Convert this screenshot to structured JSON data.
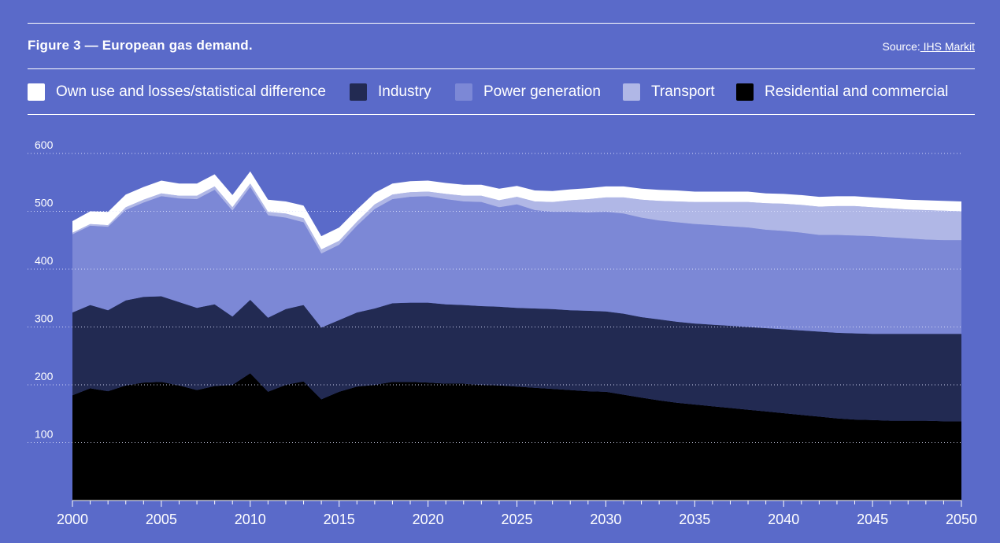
{
  "header": {
    "figure_title": "Figure 3 — European gas demand.",
    "source_label": "Source:",
    "source_link": " IHS Markit"
  },
  "colors": {
    "background": "#5a6ac9",
    "own_use": "#ffffff",
    "industry": "#222a52",
    "power": "#7c88d6",
    "transport": "#b0b7e6",
    "residential": "#000000"
  },
  "chart_data": {
    "type": "area",
    "stacked": true,
    "title": "",
    "xlabel": "",
    "ylabel": "",
    "ylim": [
      0,
      600
    ],
    "y_ticks": [
      "100",
      "200",
      "300",
      "400",
      "500",
      "600"
    ],
    "x_ticks": [
      "2000",
      "2005",
      "2010",
      "2015",
      "2020",
      "2025",
      "2030",
      "2035",
      "2040",
      "2045",
      "2050"
    ],
    "grid": true,
    "legend_position": "top",
    "x": [
      2000,
      2001,
      2002,
      2003,
      2004,
      2005,
      2006,
      2007,
      2008,
      2009,
      2010,
      2011,
      2012,
      2013,
      2014,
      2015,
      2016,
      2017,
      2018,
      2019,
      2020,
      2021,
      2022,
      2023,
      2024,
      2025,
      2026,
      2027,
      2028,
      2029,
      2030,
      2031,
      2032,
      2033,
      2034,
      2035,
      2036,
      2037,
      2038,
      2039,
      2040,
      2041,
      2042,
      2043,
      2044,
      2045,
      2046,
      2047,
      2048,
      2049,
      2050
    ],
    "series": [
      {
        "name": "Residential and commercial",
        "key": "residential",
        "values": [
          182,
          194,
          189,
          199,
          204,
          205,
          199,
          191,
          198,
          200,
          220,
          188,
          200,
          206,
          175,
          188,
          197,
          200,
          205,
          205,
          204,
          202,
          202,
          200,
          199,
          197,
          195,
          193,
          191,
          189,
          188,
          183,
          178,
          173,
          169,
          166,
          163,
          160,
          157,
          154,
          151,
          148,
          145,
          142,
          140,
          139,
          138,
          138,
          138,
          137,
          137
        ]
      },
      {
        "name": "Industry",
        "key": "industry",
        "values": [
          143,
          144,
          140,
          147,
          148,
          148,
          144,
          142,
          141,
          118,
          127,
          128,
          131,
          132,
          124,
          124,
          128,
          132,
          136,
          137,
          138,
          137,
          136,
          136,
          136,
          136,
          137,
          138,
          138,
          139,
          139,
          140,
          139,
          140,
          140,
          140,
          141,
          142,
          143,
          144,
          145,
          146,
          147,
          148,
          149,
          149,
          150,
          150,
          150,
          151,
          151
        ]
      },
      {
        "name": "Power generation",
        "key": "power",
        "values": [
          135,
          137,
          144,
          156,
          163,
          173,
          179,
          188,
          198,
          183,
          195,
          177,
          158,
          143,
          128,
          130,
          150,
          172,
          180,
          183,
          184,
          182,
          179,
          180,
          172,
          179,
          170,
          168,
          170,
          170,
          172,
          173,
          172,
          171,
          172,
          172,
          172,
          172,
          172,
          170,
          170,
          169,
          167,
          169,
          169,
          169,
          167,
          165,
          163,
          162,
          162
        ]
      },
      {
        "name": "Transport",
        "key": "transport",
        "values": [
          3,
          3,
          3,
          5,
          5,
          5,
          5,
          6,
          6,
          6,
          6,
          6,
          7,
          7,
          7,
          7,
          7,
          8,
          8,
          8,
          8,
          9,
          10,
          11,
          12,
          13,
          15,
          17,
          20,
          23,
          25,
          28,
          31,
          34,
          36,
          38,
          40,
          42,
          44,
          46,
          47,
          48,
          49,
          50,
          51,
          50,
          50,
          50,
          51,
          51,
          50
        ]
      },
      {
        "name": "Own use and losses/statistical difference",
        "key": "own_use",
        "values": [
          20,
          22,
          23,
          22,
          22,
          22,
          21,
          21,
          21,
          21,
          21,
          21,
          21,
          22,
          23,
          23,
          21,
          20,
          19,
          19,
          19,
          19,
          19,
          19,
          20,
          19,
          19,
          19,
          19,
          19,
          19,
          19,
          19,
          19,
          19,
          18,
          18,
          18,
          18,
          17,
          17,
          17,
          17,
          17,
          17,
          17,
          17,
          17,
          17,
          17,
          17
        ]
      }
    ]
  },
  "legend": [
    {
      "label": "Own use and losses/statistical difference",
      "color": "#ffffff"
    },
    {
      "label": "Industry",
      "color": "#222a52"
    },
    {
      "label": "Power generation",
      "color": "#7c88d6"
    },
    {
      "label": "Transport",
      "color": "#b0b7e6"
    },
    {
      "label": "Residential and commercial",
      "color": "#000000"
    }
  ]
}
